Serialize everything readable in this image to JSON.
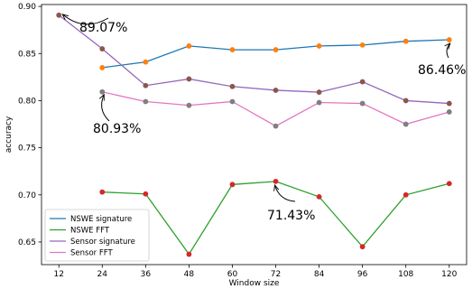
{
  "chart_data": {
    "type": "line",
    "title": "",
    "xlabel": "Window size",
    "ylabel": "accuracy",
    "x": [
      12,
      24,
      36,
      48,
      60,
      72,
      84,
      96,
      108,
      120
    ],
    "xticks": [
      "12",
      "24",
      "36",
      "48",
      "60",
      "72",
      "84",
      "96",
      "108",
      "120"
    ],
    "yticks": [
      "0.65",
      "0.70",
      "0.75",
      "0.80",
      "0.85",
      "0.90"
    ],
    "xlim": [
      7.2,
      124.8
    ],
    "ylim": [
      0.626,
      0.902
    ],
    "grid": false,
    "legend_position": "bottom-left",
    "series": [
      {
        "name": "NSWE signature",
        "color": "#1f77b4",
        "marker_color": "#ff7f0e",
        "x": [
          24,
          36,
          48,
          60,
          72,
          84,
          96,
          108,
          120
        ],
        "values": [
          0.835,
          0.841,
          0.858,
          0.854,
          0.854,
          0.858,
          0.859,
          0.863,
          0.8646
        ]
      },
      {
        "name": "NSWE FFT",
        "color": "#2ca02c",
        "marker_color": "#d62728",
        "x": [
          24,
          36,
          48,
          60,
          72,
          84,
          96,
          108,
          120
        ],
        "values": [
          0.703,
          0.701,
          0.637,
          0.711,
          0.7143,
          0.698,
          0.645,
          0.7,
          0.712
        ]
      },
      {
        "name": "Sensor signature",
        "color": "#9467bd",
        "marker_color": "#8c564b",
        "x": [
          12,
          24,
          36,
          48,
          60,
          72,
          84,
          96,
          108,
          120
        ],
        "values": [
          0.8907,
          0.855,
          0.816,
          0.823,
          0.815,
          0.811,
          0.809,
          0.82,
          0.8,
          0.797
        ]
      },
      {
        "name": "Sensor FFT",
        "color": "#e377c2",
        "marker_color": "#7f7f7f",
        "x": [
          24,
          36,
          48,
          60,
          72,
          84,
          96,
          108,
          120
        ],
        "values": [
          0.8093,
          0.799,
          0.795,
          0.799,
          0.773,
          0.798,
          0.797,
          0.775,
          0.788
        ]
      }
    ],
    "annotations": [
      {
        "text": "89.07%",
        "x": 12,
        "y": 0.8907
      },
      {
        "text": "86.46%",
        "x": 120,
        "y": 0.8646
      },
      {
        "text": "80.93%",
        "x": 24,
        "y": 0.8093
      },
      {
        "text": "71.43%",
        "x": 72,
        "y": 0.7143
      }
    ]
  }
}
